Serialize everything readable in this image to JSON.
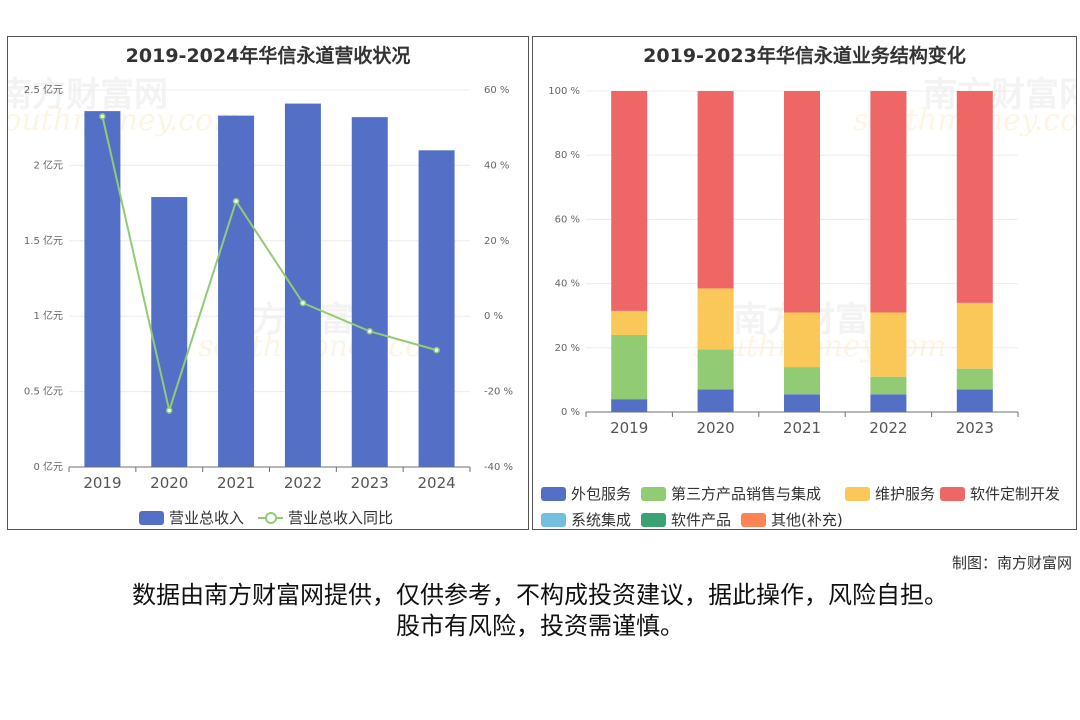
{
  "chart_data": [
    {
      "type": "bar",
      "title": "2019-2024年华信永道营收状况",
      "categories": [
        "2019",
        "2020",
        "2021",
        "2022",
        "2023",
        "2024"
      ],
      "y_ticks_left": [
        "0 亿元",
        "0.5 亿元",
        "1 亿元",
        "1.5 亿元",
        "2 亿元",
        "2.5 亿元"
      ],
      "y_ticks_right": [
        "-40 %",
        "-20 %",
        "0 %",
        "20 %",
        "40 %",
        "60 %"
      ],
      "ylim_left": [
        0,
        2.5
      ],
      "ylim_right": [
        -40,
        60
      ],
      "series": [
        {
          "name": "营业总收入",
          "kind": "bar",
          "axis": "left",
          "color": "#5470c6",
          "values": [
            2.36,
            1.79,
            2.33,
            2.41,
            2.32,
            2.1
          ]
        },
        {
          "name": "营业总收入同比",
          "kind": "line",
          "axis": "right",
          "color": "#91cc75",
          "values": [
            53,
            -25,
            30.5,
            3.5,
            -4,
            -9
          ]
        }
      ],
      "legend_position": "bottom"
    },
    {
      "type": "bar",
      "stacked": true,
      "title": "2019-2023年华信永道业务结构变化",
      "categories": [
        "2019",
        "2020",
        "2021",
        "2022",
        "2023"
      ],
      "y_ticks": [
        "0 %",
        "20 %",
        "40 %",
        "60 %",
        "80 %",
        "100 %"
      ],
      "ylim": [
        0,
        100
      ],
      "series": [
        {
          "name": "外包服务",
          "color": "#5470c6",
          "values": [
            4,
            7,
            5.5,
            5.5,
            7
          ]
        },
        {
          "name": "第三方产品销售与集成",
          "color": "#91cc75",
          "values": [
            20,
            12.5,
            8.5,
            5.5,
            6.5
          ]
        },
        {
          "name": "维护服务",
          "color": "#fac858",
          "values": [
            7.5,
            19,
            17,
            20,
            20.5
          ]
        },
        {
          "name": "软件定制开发",
          "color": "#ee6666",
          "values": [
            68.5,
            61.5,
            69,
            69,
            66
          ]
        },
        {
          "name": "系统集成",
          "color": "#73c0de",
          "values": [
            0,
            0,
            0,
            0,
            0
          ]
        },
        {
          "name": "软件产品",
          "color": "#3ba272",
          "values": [
            0,
            0,
            0,
            0,
            0
          ]
        },
        {
          "name": "其他(补充)",
          "color": "#fc8452",
          "values": [
            0,
            0,
            0,
            0,
            0
          ]
        }
      ],
      "legend_position": "bottom"
    }
  ],
  "watermark": {
    "cn": "南方财富网",
    "en": "southmoney.com"
  },
  "credit": "制图：南方财富网",
  "disclaimer": {
    "line1": "数据由南方财富网提供，仅供参考，不构成投资建议，据此操作，风险自担。",
    "line2": "股市有风险，投资需谨慎。"
  }
}
